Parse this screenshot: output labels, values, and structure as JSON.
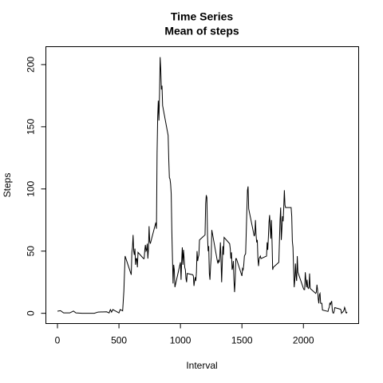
{
  "chart_data": {
    "type": "line",
    "title": "Time Series",
    "subtitle": "Mean of steps",
    "xlabel": "Interval",
    "ylabel": "Steps",
    "xlim": [
      -94.2,
      2449.2
    ],
    "ylim": [
      -8.25,
      214.4
    ],
    "xticks": [
      0,
      500,
      1000,
      1500,
      2000
    ],
    "yticks": [
      0,
      50,
      100,
      150,
      200
    ],
    "grid": false,
    "x": [
      0,
      25,
      50,
      100,
      130,
      150,
      200,
      300,
      330,
      400,
      420,
      430,
      440,
      450,
      500,
      510,
      530,
      540,
      550,
      600,
      605,
      610,
      615,
      620,
      625,
      630,
      635,
      640,
      645,
      650,
      655,
      700,
      705,
      710,
      715,
      720,
      725,
      730,
      735,
      740,
      745,
      750,
      755,
      800,
      805,
      810,
      815,
      820,
      825,
      830,
      835,
      840,
      845,
      850,
      855,
      900,
      905,
      910,
      915,
      920,
      925,
      930,
      935,
      940,
      945,
      950,
      955,
      1000,
      1005,
      1010,
      1015,
      1020,
      1025,
      1030,
      1035,
      1040,
      1045,
      1050,
      1055,
      1100,
      1105,
      1110,
      1115,
      1120,
      1125,
      1130,
      1135,
      1140,
      1145,
      1150,
      1155,
      1200,
      1205,
      1210,
      1215,
      1220,
      1225,
      1230,
      1235,
      1240,
      1245,
      1250,
      1255,
      1300,
      1305,
      1310,
      1315,
      1320,
      1325,
      1330,
      1335,
      1340,
      1345,
      1350,
      1355,
      1400,
      1405,
      1410,
      1415,
      1420,
      1425,
      1430,
      1435,
      1440,
      1445,
      1450,
      1455,
      1500,
      1505,
      1510,
      1515,
      1520,
      1525,
      1530,
      1535,
      1540,
      1545,
      1550,
      1555,
      1600,
      1605,
      1610,
      1615,
      1620,
      1625,
      1630,
      1635,
      1640,
      1645,
      1650,
      1655,
      1700,
      1705,
      1710,
      1715,
      1720,
      1725,
      1730,
      1735,
      1740,
      1745,
      1750,
      1755,
      1800,
      1805,
      1810,
      1815,
      1820,
      1825,
      1830,
      1835,
      1840,
      1845,
      1850,
      1855,
      1900,
      1905,
      1910,
      1915,
      1920,
      1925,
      1930,
      1935,
      1940,
      1945,
      1950,
      1955,
      2000,
      2005,
      2010,
      2015,
      2020,
      2025,
      2030,
      2035,
      2040,
      2045,
      2050,
      2055,
      2100,
      2105,
      2110,
      2115,
      2120,
      2125,
      2130,
      2135,
      2140,
      2145,
      2150,
      2155,
      2200,
      2205,
      2210,
      2215,
      2220,
      2225,
      2230,
      2235,
      2240,
      2245,
      2250,
      2255,
      2300,
      2305,
      2310,
      2315,
      2320,
      2325,
      2330,
      2335,
      2340,
      2345,
      2350,
      2355
    ],
    "series": [
      {
        "name": "Steps",
        "color": "#000000",
        "values": [
          1.7,
          2.1,
          0.3,
          0.3,
          1.8,
          0.3,
          0,
          0,
          1.0,
          1.2,
          0.3,
          3.0,
          1.0,
          3.0,
          0.3,
          3.0,
          2.0,
          18,
          46,
          31,
          49,
          53,
          63,
          50,
          47,
          52,
          39,
          44,
          44,
          37,
          49,
          44,
          44,
          51,
          55,
          50,
          51,
          56,
          44,
          52,
          70,
          58,
          56,
          73,
          68,
          129,
          158,
          171,
          155,
          177,
          206,
          196,
          180,
          183,
          167,
          143,
          124,
          109,
          108,
          104,
          96,
          66,
          45,
          24,
          39,
          35,
          21,
          41,
          27,
          42,
          53,
          39,
          51,
          44,
          37,
          35,
          28,
          25,
          32,
          31,
          30,
          22,
          26,
          29,
          26,
          33,
          50,
          42,
          45,
          47,
          59,
          63,
          88,
          95,
          93,
          63,
          50,
          54,
          32,
          27,
          38,
          45,
          67,
          42,
          40,
          43,
          41,
          46,
          57,
          43,
          25,
          40,
          54,
          47,
          61,
          56,
          52,
          44,
          49,
          35,
          37,
          42,
          27,
          17,
          26,
          44,
          44,
          30,
          36,
          35,
          39,
          46,
          47,
          48,
          65,
          83,
          99,
          102,
          84,
          62,
          64,
          75,
          63,
          57,
          59,
          44,
          38,
          44,
          45,
          46,
          44,
          46,
          57,
          51,
          61,
          73,
          79,
          69,
          60,
          75,
          57,
          35,
          37,
          41,
          58,
          75,
          85,
          59,
          68,
          78,
          74,
          85,
          99,
          87,
          85,
          85,
          78,
          58,
          53,
          36,
          21,
          27,
          40,
          30,
          26,
          46,
          33,
          20,
          19,
          19,
          33,
          27,
          21,
          27,
          21,
          20,
          21,
          32,
          20,
          16,
          17,
          23,
          19,
          12,
          8,
          15,
          16,
          8,
          8,
          8,
          2.6,
          1.5,
          3.7,
          4.8,
          8.5,
          7.1,
          8.7,
          9.8,
          2.2,
          0.3,
          0.1,
          1.6,
          4.6,
          3.3,
          2.8,
          0,
          0.8,
          1,
          1.6,
          2.6,
          4.7,
          3.3,
          0.6,
          0.2,
          1.1
        ]
      }
    ]
  }
}
